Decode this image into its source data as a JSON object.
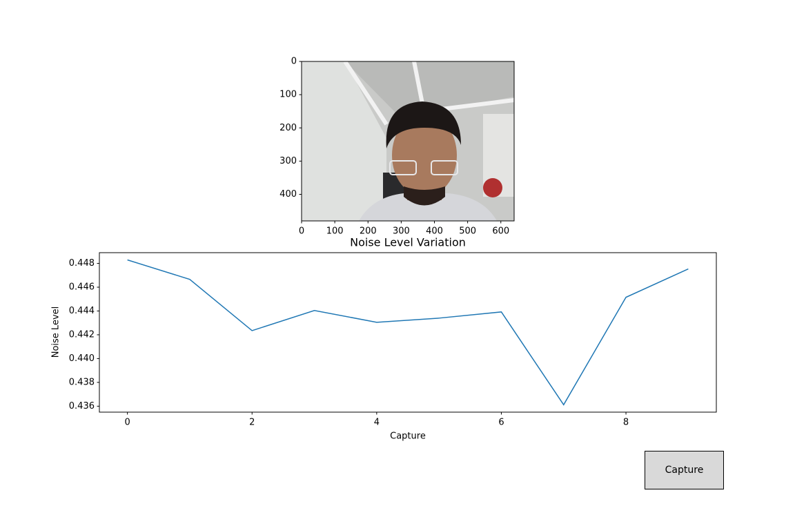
{
  "chart_data": [
    {
      "type": "image",
      "xlim": [
        0,
        640
      ],
      "xticks": [
        0,
        100,
        200,
        300,
        400,
        500,
        600
      ],
      "ylim": [
        480,
        0
      ],
      "yticks": [
        0,
        100,
        200,
        300,
        400
      ]
    },
    {
      "type": "line",
      "title": "Noise Level Variation",
      "x_label": "Capture",
      "y_label": "Noise Level",
      "x": [
        0,
        1,
        2,
        3,
        4,
        5,
        6,
        7,
        8,
        9
      ],
      "values": [
        0.44829,
        0.44666,
        0.44235,
        0.44404,
        0.44305,
        0.4434,
        0.44392,
        0.43612,
        0.44515,
        0.44753
      ],
      "color": "#1f77b4",
      "xlim": [
        -0.45,
        9.45
      ],
      "xticks": [
        0,
        2,
        4,
        6,
        8
      ],
      "ylim": [
        0.4355,
        0.4489
      ],
      "yticks": [
        0.436,
        0.438,
        {
          "value": 0.44,
          "label": "0.440"
        },
        0.442,
        0.444,
        0.446,
        0.448
      ]
    }
  ],
  "button": {
    "label": "Capture"
  }
}
